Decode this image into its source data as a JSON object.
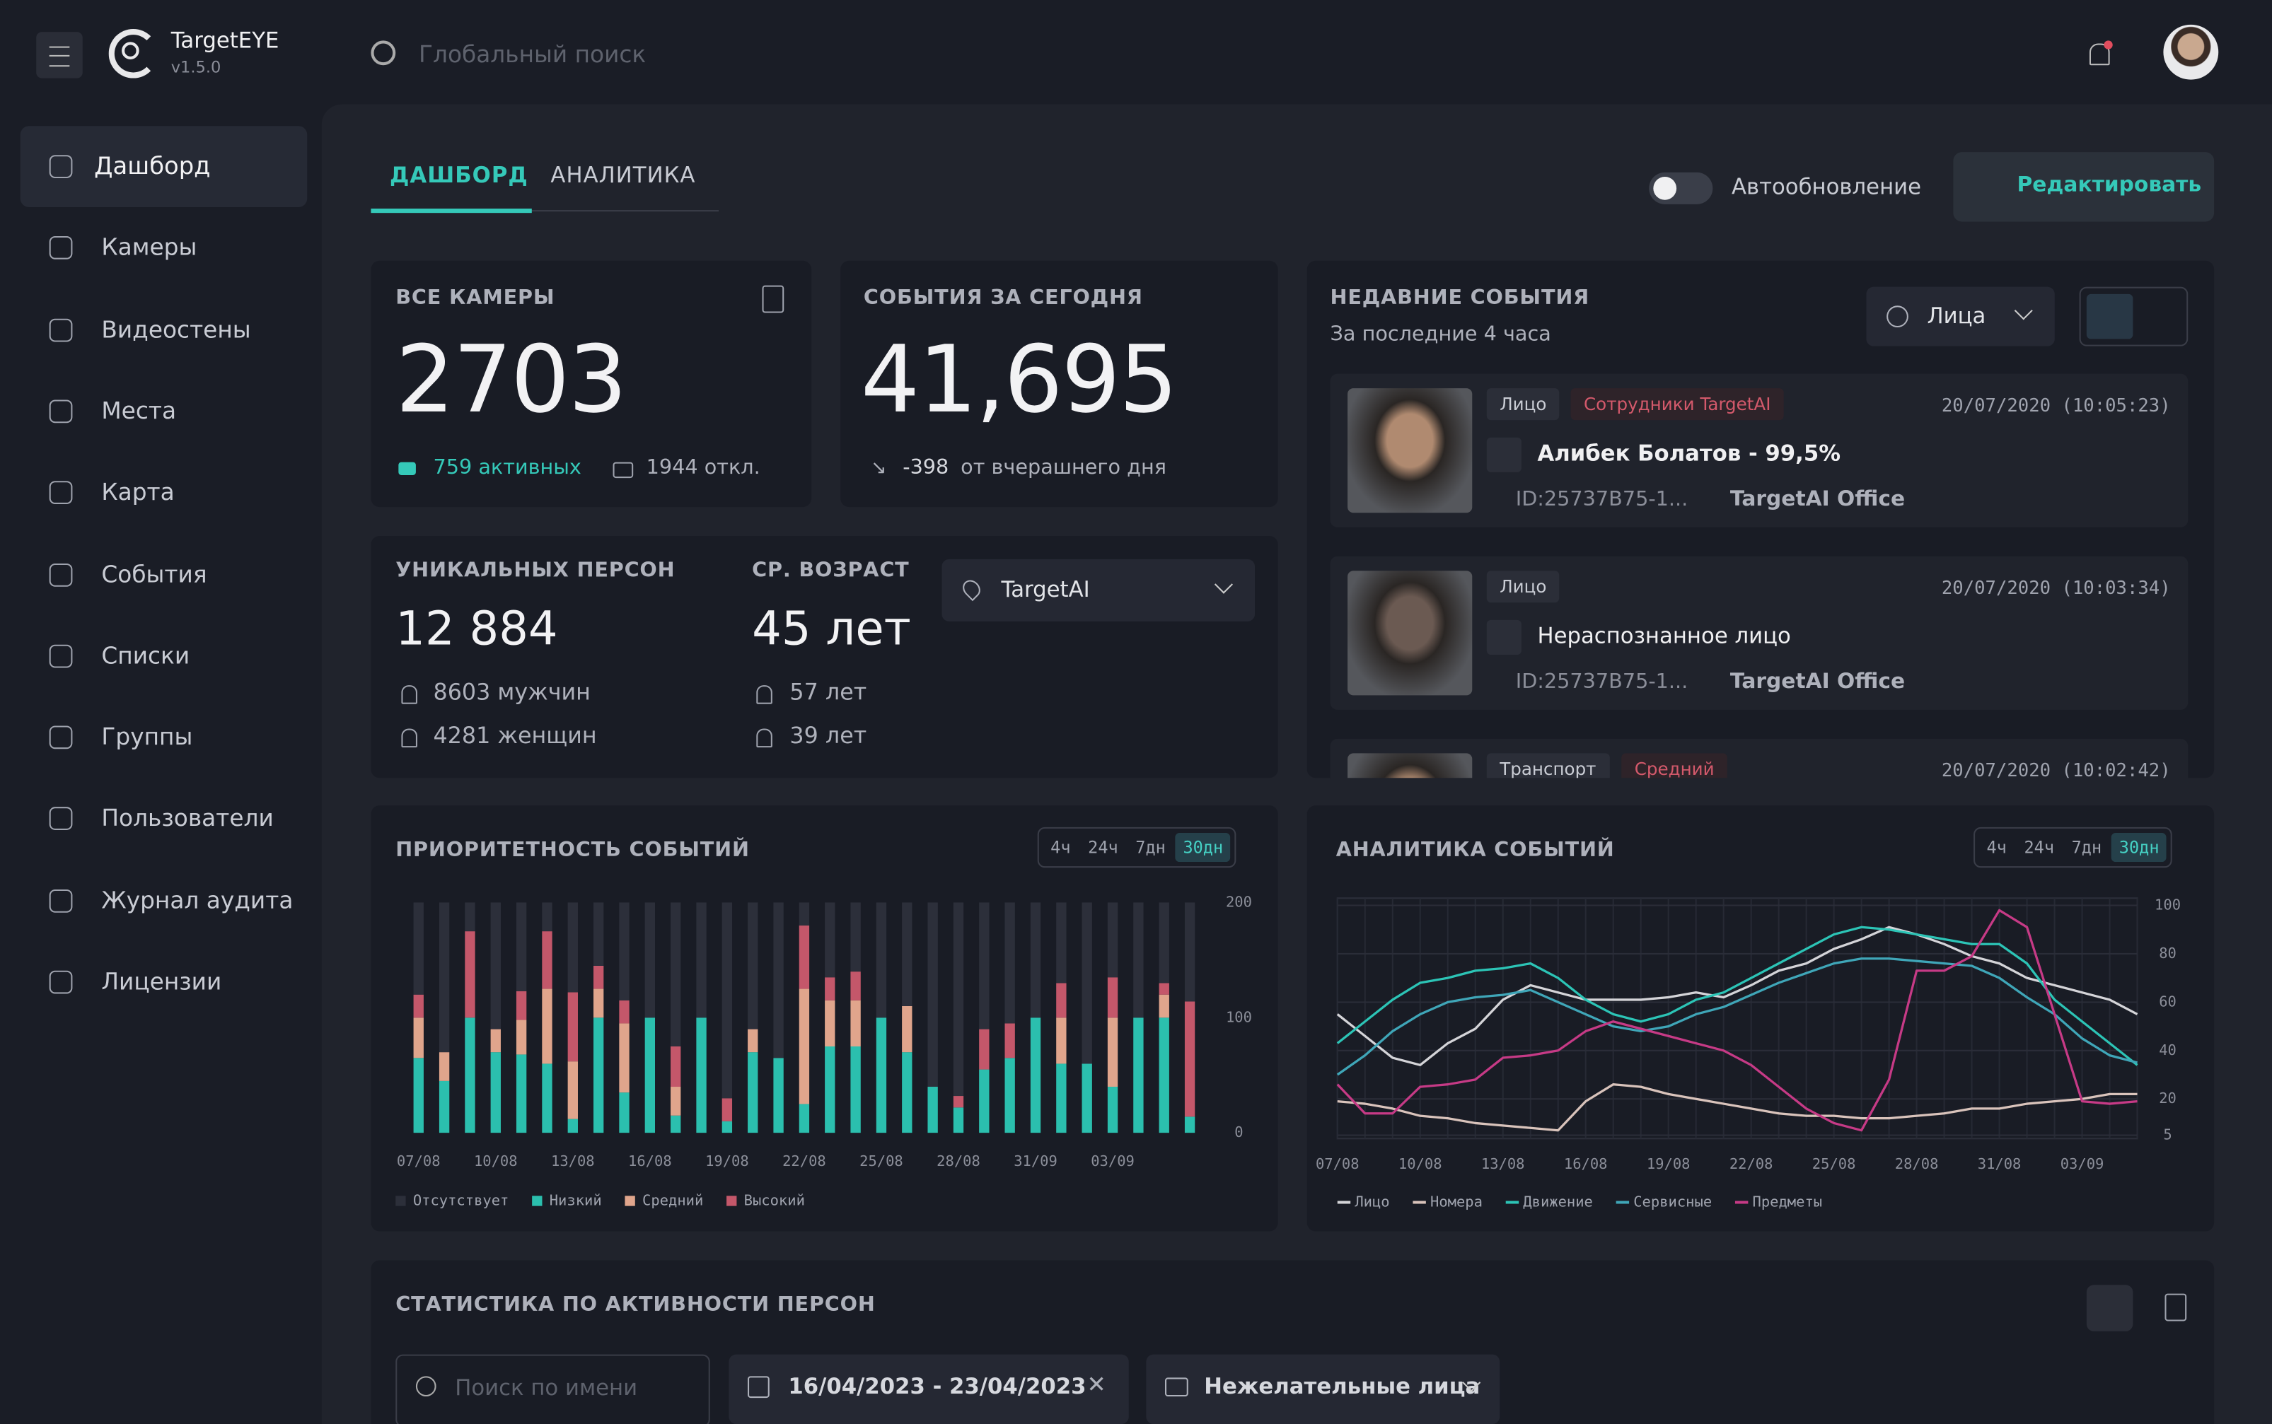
{
  "app": {
    "name": "TargetEYE",
    "version": "v1.5.0",
    "search": "Глобальный поиск"
  },
  "sidebar": [
    "Дашборд",
    "Камеры",
    "Видеостены",
    "Места",
    "Карта",
    "События",
    "Списки",
    "Группы",
    "Пользователи",
    "Журнал аудита",
    "Лицензии"
  ],
  "tabs": [
    "ДАШБОРД",
    "АНАЛИТИКА"
  ],
  "toolbar": {
    "autoupdate": "Автообновление",
    "edit": "Редактировать"
  },
  "cameras": {
    "title": "ВСЕ КАМЕРЫ",
    "total": "2703",
    "active": "759 активных",
    "offline": "1944 откл."
  },
  "events_today": {
    "title": "СОБЫТИЯ ЗА СЕГОДНЯ",
    "total": "41,695",
    "delta": "-398",
    "delta_text": "от вчерашнего дня"
  },
  "persons": {
    "title": "УНИКАЛЬНЫХ ПЕРСОН",
    "total": "12 884",
    "men": "8603 мужчин",
    "women": "4281 женщин",
    "age_title": "СР. ВОЗРАСТ",
    "age": "45 лет",
    "age_men": "57 лет",
    "age_women": "39 лет",
    "place": "TargetAI"
  },
  "recent": {
    "title": "НЕДАВНИЕ СОБЫТИЯ",
    "subtitle": "За последние 4 часа",
    "filter": "Лица",
    "items": [
      {
        "tags": [
          "Лицо",
          "Сотрудники TargetAI"
        ],
        "time": "20/07/2020 (10:05:23)",
        "name": "Алибек Болатов - 99,5%",
        "id": "ID:25737B75-1...",
        "place": "TargetAI Office"
      },
      {
        "tags": [
          "Лицо"
        ],
        "time": "20/07/2020 (10:03:34)",
        "name": "Нераспознанное лицо",
        "id": "ID:25737B75-1...",
        "place": "TargetAI Office"
      },
      {
        "tags": [
          "Транспорт",
          "Средний"
        ],
        "time": "20/07/2020 (10:02:42)"
      }
    ]
  },
  "chart_data": [
    {
      "type": "bar",
      "stacked": true,
      "title": "ПРИОРИТЕТНОСТЬ СОБЫТИЙ",
      "periods": [
        "4ч",
        "24ч",
        "7дн",
        "30дн"
      ],
      "categories": [
        "07/08",
        null,
        null,
        "10/08",
        null,
        null,
        "13/08",
        null,
        null,
        "16/08",
        null,
        null,
        "19/08",
        null,
        null,
        "22/08",
        null,
        null,
        "25/08",
        null,
        null,
        "28/08",
        null,
        null,
        "31/09",
        null,
        null,
        "03/09",
        null,
        null,
        null
      ],
      "series": [
        {
          "name": "Отсутствует",
          "color": "#2c2f3a",
          "values": [
            80,
            130,
            25,
            110,
            77,
            25,
            78,
            55,
            85,
            100,
            125,
            100,
            170,
            110,
            135,
            20,
            65,
            60,
            100,
            90,
            160,
            168,
            110,
            105,
            100,
            70,
            140,
            65,
            100,
            70,
            86
          ]
        },
        {
          "name": "Низкий",
          "color": "#2bbfae",
          "values": [
            65,
            45,
            100,
            70,
            68,
            60,
            12,
            100,
            35,
            100,
            15,
            100,
            10,
            70,
            65,
            25,
            75,
            75,
            100,
            70,
            40,
            22,
            55,
            65,
            100,
            60,
            60,
            40,
            100,
            100,
            14
          ]
        },
        {
          "name": "Средний",
          "color": "#e0a58c",
          "values": [
            35,
            25,
            0,
            20,
            30,
            65,
            50,
            25,
            60,
            0,
            25,
            0,
            0,
            20,
            0,
            100,
            40,
            40,
            0,
            40,
            0,
            0,
            0,
            0,
            0,
            40,
            0,
            60,
            0,
            20,
            0
          ]
        },
        {
          "name": "Высокий",
          "color": "#c4576a",
          "values": [
            20,
            0,
            75,
            0,
            25,
            50,
            60,
            20,
            20,
            0,
            35,
            0,
            20,
            0,
            0,
            55,
            20,
            25,
            0,
            0,
            0,
            10,
            35,
            30,
            0,
            30,
            0,
            35,
            0,
            10,
            100
          ]
        }
      ],
      "ylim": [
        0,
        200
      ],
      "yticks": [
        0,
        100,
        200
      ],
      "grid": false
    },
    {
      "type": "line",
      "title": "АНАЛИТИКА СОБЫТИЙ",
      "periods": [
        "4ч",
        "24ч",
        "7дн",
        "30дн"
      ],
      "categories": [
        "07/08",
        null,
        null,
        "10/08",
        null,
        null,
        "13/08",
        null,
        null,
        "16/08",
        null,
        null,
        "19/08",
        null,
        null,
        "22/08",
        null,
        null,
        "25/08",
        null,
        null,
        "28/08",
        null,
        null,
        "31/08",
        null,
        null,
        "03/09",
        null,
        null
      ],
      "series": [
        {
          "name": "Лицо",
          "color": "#d4d4d8",
          "values": [
            55,
            46,
            37,
            34,
            43,
            49,
            61,
            67,
            64,
            61,
            61,
            61,
            62,
            64,
            62,
            67,
            73,
            76,
            82,
            86,
            91,
            88,
            84,
            79,
            76,
            70,
            67,
            64,
            61,
            55
          ]
        },
        {
          "name": "Номера",
          "color": "#d9c3bb",
          "values": [
            19,
            18,
            16,
            13,
            12,
            10,
            9,
            8,
            7,
            19,
            26,
            25,
            22,
            20,
            18,
            16,
            14,
            13,
            13,
            12,
            12,
            13,
            14,
            16,
            16,
            18,
            19,
            20,
            22,
            22
          ]
        },
        {
          "name": "Движение",
          "color": "#2cc4b6",
          "values": [
            43,
            52,
            61,
            68,
            70,
            73,
            74,
            76,
            70,
            61,
            55,
            52,
            55,
            61,
            64,
            70,
            76,
            82,
            88,
            91,
            90,
            88,
            86,
            84,
            84,
            76,
            61,
            52,
            43,
            34
          ]
        },
        {
          "name": "Сервисные",
          "color": "#3fa6b8",
          "values": [
            30,
            38,
            48,
            55,
            60,
            62,
            63,
            65,
            60,
            55,
            50,
            48,
            50,
            55,
            58,
            63,
            68,
            72,
            76,
            78,
            78,
            77,
            76,
            75,
            70,
            62,
            55,
            45,
            38,
            35
          ]
        },
        {
          "name": "Предметы",
          "color": "#c63a86",
          "values": [
            26,
            14,
            14,
            25,
            26,
            28,
            37,
            38,
            40,
            48,
            52,
            49,
            46,
            43,
            40,
            34,
            25,
            16,
            10,
            7,
            28,
            73,
            73,
            79,
            98,
            91,
            55,
            19,
            18,
            19
          ]
        }
      ],
      "ylim": [
        0,
        100
      ],
      "yticks": [
        5,
        20,
        40,
        60,
        80,
        100
      ],
      "grid": true
    }
  ],
  "activity": {
    "title": "СТАТИСТИКА ПО АКТИВНОСТИ ПЕРСОН",
    "search": "Поиск по имени",
    "dates": "16/04/2023 - 23/04/2023",
    "list": "Нежелательные лица"
  }
}
